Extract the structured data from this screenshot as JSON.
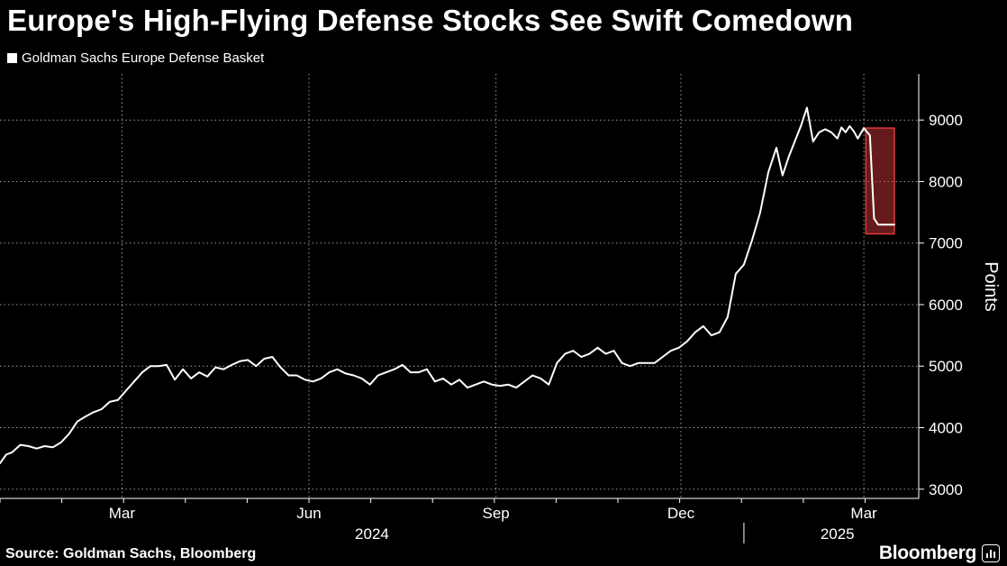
{
  "chart_data": {
    "type": "line",
    "title": "Europe's High-Flying Defense Stocks See Swift Comedown",
    "ylabel": "Points",
    "xlabel": "",
    "ylim": [
      2850,
      9750
    ],
    "y_ticks": [
      3000,
      4000,
      5000,
      6000,
      7000,
      8000,
      9000
    ],
    "y_tick_labels": [
      "3000",
      "4000",
      "5000",
      "6000",
      "7000",
      "8000",
      "9000"
    ],
    "x_domain": [
      0,
      452
    ],
    "x_ticks": [
      {
        "label": "Mar",
        "day": 60
      },
      {
        "label": "Jun",
        "day": 152
      },
      {
        "label": "Sep",
        "day": 244
      },
      {
        "label": "Dec",
        "day": 335
      },
      {
        "label": "Mar",
        "day": 425
      }
    ],
    "year_labels": [
      {
        "label": "2024",
        "day": 183
      },
      {
        "label": "2025",
        "day": 412
      }
    ],
    "year_boundary_day": 366,
    "legend": "top-left",
    "grid": true,
    "series": [
      {
        "name": "Goldman Sachs Europe Defense Basket",
        "x": [
          0,
          3,
          6,
          10,
          14,
          18,
          22,
          26,
          30,
          34,
          38,
          42,
          46,
          50,
          54,
          58,
          62,
          66,
          70,
          74,
          78,
          82,
          86,
          90,
          94,
          98,
          102,
          106,
          110,
          114,
          118,
          122,
          126,
          130,
          134,
          138,
          142,
          146,
          150,
          154,
          158,
          162,
          166,
          170,
          174,
          178,
          182,
          186,
          190,
          194,
          198,
          202,
          206,
          210,
          214,
          218,
          222,
          226,
          230,
          234,
          238,
          242,
          246,
          250,
          254,
          258,
          262,
          266,
          270,
          274,
          278,
          282,
          286,
          290,
          294,
          298,
          302,
          306,
          310,
          314,
          318,
          322,
          326,
          330,
          334,
          338,
          342,
          346,
          350,
          354,
          358,
          362,
          366,
          370,
          374,
          378,
          382,
          385,
          388,
          391,
          394,
          397,
          400,
          403,
          406,
          409,
          412,
          414,
          416,
          418,
          420,
          422,
          425,
          428,
          430,
          432,
          434,
          436,
          438,
          440
        ],
        "values": [
          3420,
          3560,
          3600,
          3720,
          3700,
          3660,
          3700,
          3680,
          3760,
          3900,
          4100,
          4180,
          4250,
          4300,
          4420,
          4450,
          4600,
          4750,
          4900,
          5000,
          5000,
          5020,
          4780,
          4950,
          4800,
          4900,
          4830,
          4980,
          4950,
          5020,
          5080,
          5100,
          5000,
          5120,
          5150,
          4980,
          4850,
          4850,
          4780,
          4750,
          4800,
          4900,
          4950,
          4880,
          4850,
          4800,
          4700,
          4850,
          4900,
          4950,
          5020,
          4900,
          4900,
          4950,
          4750,
          4800,
          4700,
          4780,
          4650,
          4700,
          4750,
          4700,
          4680,
          4700,
          4650,
          4750,
          4850,
          4800,
          4700,
          5050,
          5200,
          5250,
          5150,
          5200,
          5300,
          5200,
          5250,
          5050,
          5000,
          5050,
          5050,
          5050,
          5150,
          5250,
          5300,
          5400,
          5550,
          5650,
          5500,
          5550,
          5800,
          6500,
          6650,
          7050,
          7500,
          8150,
          8550,
          8100,
          8400,
          8650,
          8900,
          9200,
          8650,
          8800,
          8850,
          8800,
          8700,
          8880,
          8800,
          8900,
          8820,
          8700,
          8870,
          8750,
          7400,
          7300,
          7300,
          7300,
          7300,
          7300
        ],
        "color": "#ffffff"
      }
    ],
    "annotations": [
      {
        "type": "highlight-box",
        "x_range": [
          426,
          440
        ],
        "y_range": [
          7150,
          8870
        ],
        "color": "#e0393e"
      }
    ]
  },
  "header": {
    "title": "Europe's High-Flying Defense Stocks See Swift Comedown",
    "legend_label": "Goldman Sachs Europe Defense Basket"
  },
  "footer": {
    "source": "Source: Goldman Sachs, Bloomberg",
    "brand": "Bloomberg",
    "brand_icon": "bar-chart-icon"
  }
}
